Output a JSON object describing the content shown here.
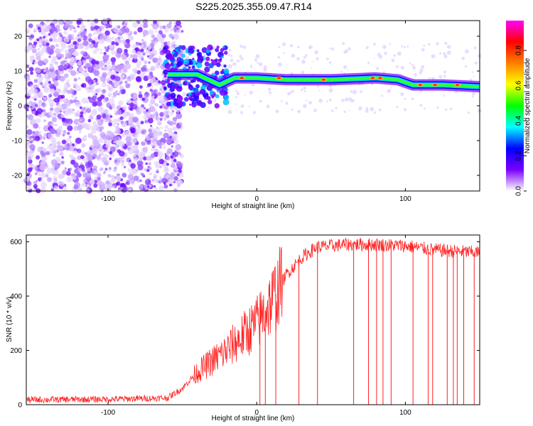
{
  "figure": {
    "title": "S225.2025.355.09.47.R14"
  },
  "chart_data": [
    {
      "type": "heatmap",
      "xlabel": "Height of straight line (km)",
      "ylabel": "Frequency (Hz)",
      "xlim": [
        -155,
        150
      ],
      "ylim": [
        -24.5,
        24.5
      ],
      "xticks": [
        -100,
        0,
        100
      ],
      "yticks": [
        -20,
        -10,
        0,
        10,
        20
      ],
      "colorbar": {
        "label": "Normalized spectral amplitude",
        "range": [
          0,
          0.97
        ],
        "ticks": [
          0.0,
          0.2,
          0.4,
          0.6,
          0.8
        ],
        "colormap": [
          "#ffffff",
          "#7a00ff",
          "#0000ff",
          "#00ffff",
          "#00ff00",
          "#ffff00",
          "#ff7f00",
          "#ff0000",
          "#ff00ff"
        ]
      },
      "ridge": [
        {
          "x": -60,
          "y": 9
        },
        {
          "x": -40,
          "y": 9
        },
        {
          "x": -25,
          "y": 6
        },
        {
          "x": -15,
          "y": 8
        },
        {
          "x": 0,
          "y": 8
        },
        {
          "x": 20,
          "y": 7.5
        },
        {
          "x": 50,
          "y": 7.5
        },
        {
          "x": 80,
          "y": 8
        },
        {
          "x": 95,
          "y": 7.5
        },
        {
          "x": 105,
          "y": 6
        },
        {
          "x": 125,
          "y": 6
        },
        {
          "x": 150,
          "y": 5.5
        }
      ]
    },
    {
      "type": "line",
      "xlabel": "Height of straight line (km)",
      "ylabel": "SNR (10 * v/v)",
      "xlim": [
        -155,
        150
      ],
      "ylim": [
        0,
        625
      ],
      "xticks": [
        -100,
        0,
        100
      ],
      "yticks": [
        0,
        200,
        400,
        600
      ],
      "color": "#ff2020",
      "series": [
        {
          "x": [
            -155,
            -100,
            -60,
            -50,
            -40,
            -30,
            -20,
            -10,
            0,
            10,
            20,
            30,
            40,
            60,
            80,
            100,
            120,
            150
          ],
          "y": [
            18,
            20,
            25,
            60,
            120,
            160,
            200,
            250,
            300,
            380,
            480,
            540,
            580,
            590,
            590,
            585,
            570,
            560
          ]
        }
      ]
    }
  ]
}
